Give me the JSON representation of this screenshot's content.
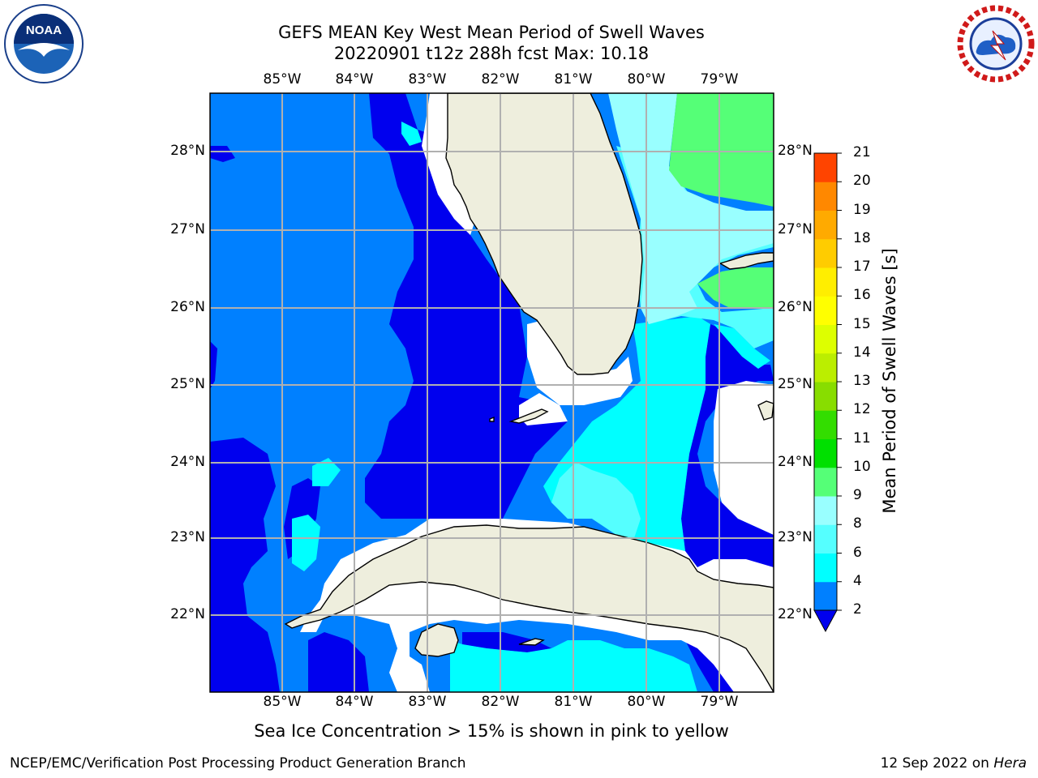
{
  "title": {
    "line1": "GEFS MEAN Key West Mean Period of Swell Waves",
    "line2": "20220901 t12z 288h fcst   Max: 10.18"
  },
  "logos": {
    "left": {
      "icon": "noaa-logo-icon",
      "text": "NOAA"
    },
    "right": {
      "icon": "nws-logo-icon",
      "text": "NATIONAL WEATHER SERVICE"
    }
  },
  "map": {
    "lon_labels": [
      "85°W",
      "84°W",
      "83°W",
      "82°W",
      "81°W",
      "80°W",
      "79°W"
    ],
    "lat_labels": [
      "28°N",
      "27°N",
      "26°N",
      "25°N",
      "24°N",
      "23°N",
      "22°N"
    ],
    "colors": {
      "land": "#eeeedd",
      "band_2_4": "#0080ff",
      "band_lt2": "#0000ee",
      "band_4_6": "#00ffff",
      "band_6_8": "#55ffff",
      "band_8_9": "#99ffff",
      "band_9_10": "#55ff77",
      "grid": "#b0b0b0"
    }
  },
  "colorbar": {
    "label": "Mean Period of Swell Waves [s]",
    "ticks": [
      "2",
      "4",
      "6",
      "8",
      "9",
      "10",
      "11",
      "12",
      "13",
      "14",
      "15",
      "16",
      "17",
      "18",
      "19",
      "20",
      "21"
    ],
    "colors": [
      "#0080ff",
      "#00ffff",
      "#55ffff",
      "#99ffff",
      "#55ff77",
      "#00e000",
      "#33dd00",
      "#88dd00",
      "#bbee00",
      "#ddff00",
      "#ffff00",
      "#ffee00",
      "#ffcc00",
      "#ffaa00",
      "#ff8800",
      "#ff4400",
      "#ff0000"
    ],
    "extend_color": "#0000ee"
  },
  "footnote": "Sea Ice Concentration > 15% is shown in pink to yellow",
  "credits": {
    "left": "NCEP/EMC/Verification Post Processing Product Generation Branch",
    "right_date": "12 Sep 2022 on ",
    "right_host": "Hera"
  }
}
